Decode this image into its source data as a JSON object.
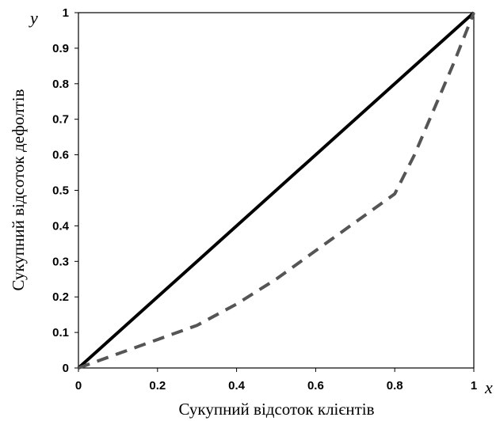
{
  "chart_data": {
    "type": "line",
    "title": "",
    "xlabel": "Сукупний відсоток клієнтів",
    "ylabel": "Сукупний відсоток дефолтів",
    "x_axis_symbol": "x",
    "y_axis_symbol": "y",
    "xlim": [
      0,
      1
    ],
    "ylim": [
      0,
      1
    ],
    "x_ticks": [
      "0",
      "0.2",
      "0.4",
      "0.6",
      "0.8",
      "1"
    ],
    "y_ticks": [
      "0",
      "0.1",
      "0.2",
      "0.3",
      "0.4",
      "0.5",
      "0.6",
      "0.7",
      "0.8",
      "0.9",
      "1"
    ],
    "grid": false,
    "legend": "none",
    "series": [
      {
        "style": "solid",
        "color": "#000000",
        "x": [
          0,
          1
        ],
        "y": [
          0,
          1
        ]
      },
      {
        "style": "dashed",
        "color": "#555555",
        "x": [
          0,
          0.05,
          0.1,
          0.2,
          0.3,
          0.4,
          0.5,
          0.6,
          0.7,
          0.8,
          0.85,
          0.9,
          0.95,
          1
        ],
        "y": [
          0,
          0.02,
          0.04,
          0.08,
          0.12,
          0.18,
          0.25,
          0.33,
          0.41,
          0.49,
          0.6,
          0.73,
          0.86,
          1
        ]
      }
    ]
  }
}
